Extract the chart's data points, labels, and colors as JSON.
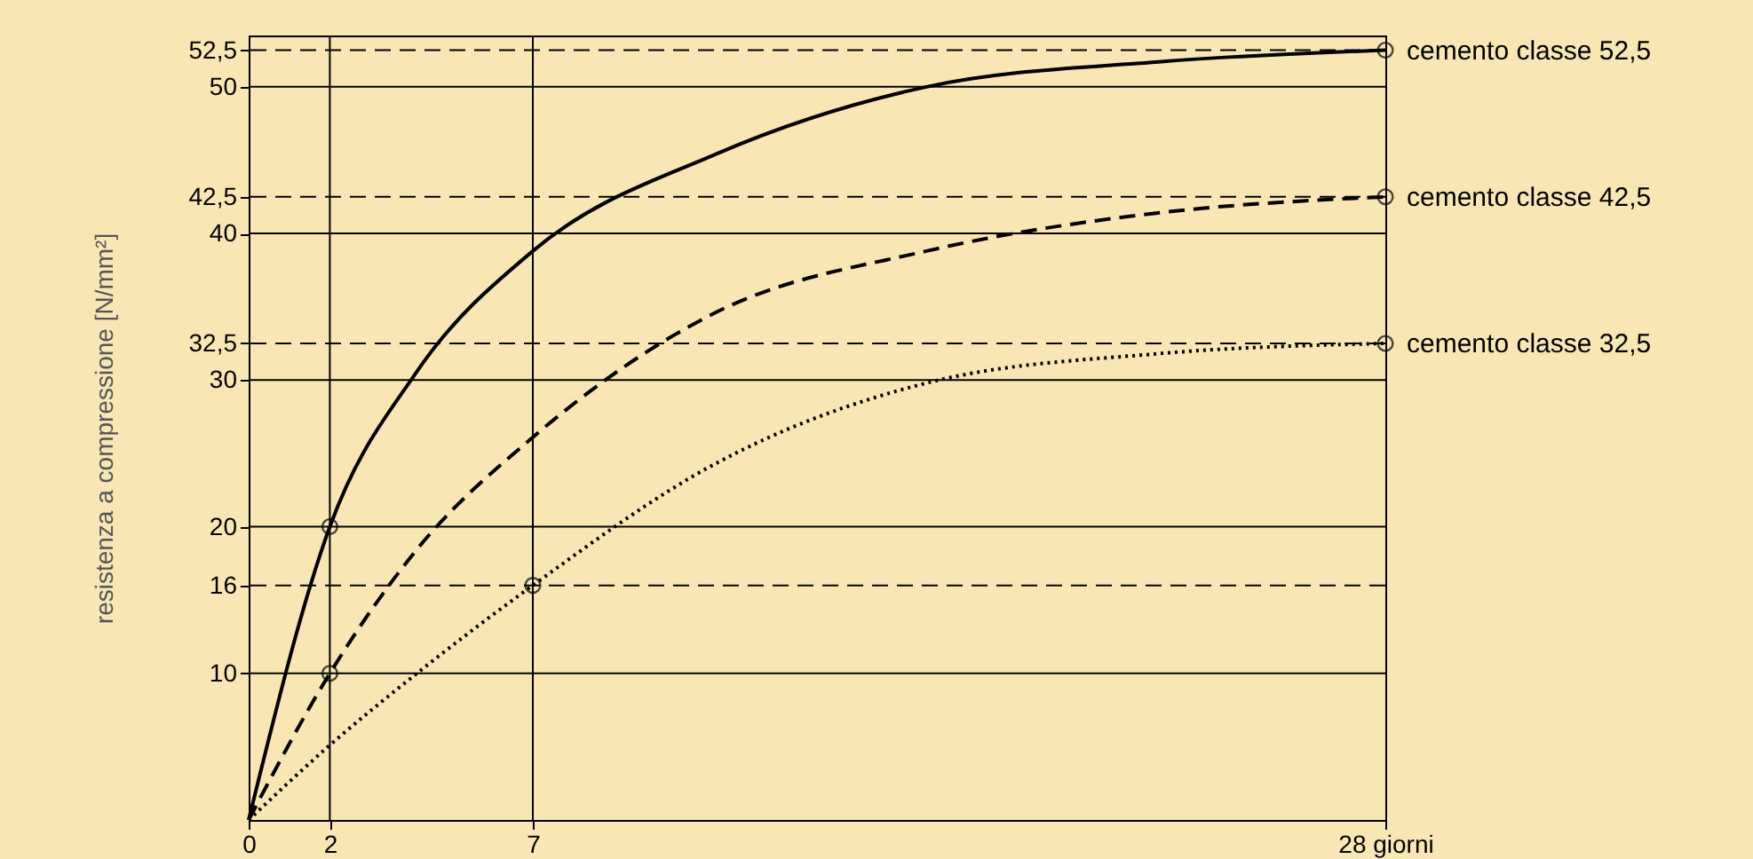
{
  "chart_data": {
    "type": "line",
    "ylabel": "resistenza a compressione [N/mm²]",
    "xlim": [
      0,
      28
    ],
    "xticks": [
      0,
      2,
      7,
      {
        "value": 28,
        "label": "28 giorni"
      }
    ],
    "ylim": [
      0,
      53.5
    ],
    "yticks": [
      10,
      16,
      20,
      30,
      {
        "value": 32.5,
        "label": "32,5"
      },
      40,
      {
        "value": 42.5,
        "label": "42,5"
      },
      50,
      {
        "value": 52.5,
        "label": "52,5"
      }
    ],
    "grid": false,
    "series": [
      {
        "name": "cemento classe 52,5",
        "color": "#000000",
        "line_style": "solid",
        "marker": "none",
        "x": [
          0,
          2,
          4.1,
          7,
          11.5,
          16.7,
          22.4,
          28
        ],
        "values": [
          0,
          20,
          30.4,
          38.8,
          45.4,
          50,
          51.7,
          52.5
        ]
      },
      {
        "name": "cemento classe 42,5",
        "color": "#000000",
        "line_style": "dashed",
        "marker": "none",
        "x": [
          0,
          2,
          4.1,
          7,
          11.5,
          16.7,
          22.4,
          28
        ],
        "values": [
          0,
          10,
          18.3,
          26.1,
          34.6,
          38.8,
          41.4,
          42.5
        ]
      },
      {
        "name": "cemento classe 32,5",
        "color": "#000000",
        "line_style": "dotted",
        "marker": "none",
        "x": [
          0,
          2,
          4.1,
          7,
          11.5,
          16.7,
          22.4,
          28
        ],
        "values": [
          0,
          5.1,
          9.9,
          16,
          24.3,
          29.8,
          31.8,
          32.5
        ]
      },
      {
        "type": "scatter",
        "color": "#000000",
        "marker": "circle",
        "x": [
          2,
          2,
          7,
          28,
          28,
          28
        ],
        "values": [
          20,
          10,
          16,
          52.5,
          42.5,
          32.5
        ]
      }
    ],
    "ref_lines": [
      {
        "axis": "y",
        "value": 10,
        "line_style": "solid"
      },
      {
        "axis": "y",
        "value": 20,
        "line_style": "solid"
      },
      {
        "axis": "y",
        "value": 30,
        "line_style": "solid"
      },
      {
        "axis": "y",
        "value": 40,
        "line_style": "solid"
      },
      {
        "axis": "y",
        "value": 50,
        "line_style": "solid"
      },
      {
        "axis": "y",
        "value": 16,
        "line_style": "dashed"
      },
      {
        "axis": "y",
        "value": 32.5,
        "line_style": "dashed"
      },
      {
        "axis": "y",
        "value": 42.5,
        "line_style": "dashed"
      },
      {
        "axis": "y",
        "value": 52.5,
        "line_style": "dashed"
      },
      {
        "axis": "x",
        "value": 2,
        "line_style": "solid"
      },
      {
        "axis": "x",
        "value": 7,
        "line_style": "solid"
      }
    ]
  }
}
